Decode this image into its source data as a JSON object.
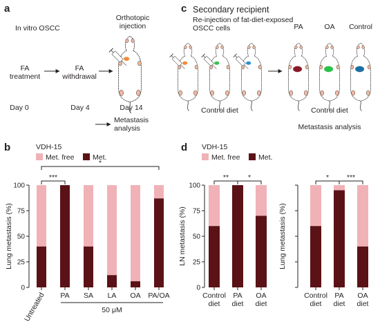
{
  "colors": {
    "met_free": "#f0b2b7",
    "met": "#5a1217",
    "pa": "#8a1a2a",
    "oa": "#2bc24a",
    "control": "#1a6fa3",
    "syringe_orange": "#f08a3a",
    "syringe_green": "#37c24c",
    "syringe_blue": "#2a8fd0",
    "skin": "#f2b9a0"
  },
  "panel_a": {
    "letter": "a",
    "title": "In vitro OSCC",
    "step1": [
      "FA",
      "treatment"
    ],
    "step2": [
      "FA",
      "withdrawal"
    ],
    "step3": [
      "Orthotopic",
      "injection"
    ],
    "day0": "Day 0",
    "day4": "Day 4",
    "day14": "Day 14",
    "outcome": [
      "Metastasis",
      "analysis"
    ]
  },
  "panel_c": {
    "letter": "c",
    "title": "Secondary recipient",
    "subtitle": [
      "Re-injection of fat-diet-exposed",
      "OSCC cells"
    ],
    "left_caption": "Control diet",
    "groups": [
      "PA",
      "OA",
      "Control"
    ],
    "right_caption": "Control diet",
    "outcome": "Metastasis analysis"
  },
  "chart_data": [
    {
      "panel": "b",
      "type": "bar",
      "stacked": true,
      "subtitle": "VDH-15",
      "ylabel": "Lung metastasis (%)",
      "ylim": [
        0,
        100
      ],
      "yticks": [
        0,
        25,
        50,
        75,
        100
      ],
      "categories": [
        "Untreated",
        "PA",
        "SA",
        "LA",
        "OA",
        "PA/OA"
      ],
      "series": [
        {
          "name": "Met.",
          "values": [
            40,
            100,
            40,
            12,
            6,
            87
          ]
        },
        {
          "name": "Met. free",
          "values": [
            60,
            0,
            60,
            88,
            94,
            13
          ]
        }
      ],
      "group_label": "50 μM",
      "significance": [
        {
          "from": "Untreated",
          "to": "PA",
          "label": "***"
        },
        {
          "from": "Untreated",
          "to": "PA/OA",
          "label": "*"
        }
      ],
      "legend": "top"
    },
    {
      "panel": "d",
      "type": "bar",
      "stacked": true,
      "subtitle": "VDH-15",
      "ylabel": "LN metastasis (%)",
      "ylim": [
        0,
        100
      ],
      "yticks": [
        0,
        25,
        50,
        75,
        100
      ],
      "categories": [
        [
          "Control",
          "diet"
        ],
        [
          "PA",
          "diet"
        ],
        [
          "OA",
          "diet"
        ]
      ],
      "series": [
        {
          "name": "Met.",
          "values": [
            60,
            100,
            70
          ]
        },
        {
          "name": "Met. free",
          "values": [
            40,
            0,
            30
          ]
        }
      ],
      "significance": [
        {
          "from": 0,
          "to": 1,
          "label": "**"
        },
        {
          "from": 1,
          "to": 2,
          "label": "*"
        }
      ],
      "legend": "top"
    },
    {
      "panel": "d",
      "type": "bar",
      "stacked": true,
      "ylabel": "Lung metastasis (%)",
      "ylim": [
        0,
        100
      ],
      "yticks": [
        0,
        25,
        50,
        75,
        100
      ],
      "categories": [
        [
          "Control",
          "diet"
        ],
        [
          "PA",
          "diet"
        ],
        [
          "OA",
          "diet"
        ]
      ],
      "series": [
        {
          "name": "Met.",
          "values": [
            60,
            95,
            40
          ]
        },
        {
          "name": "Met. free",
          "values": [
            40,
            5,
            60
          ]
        }
      ],
      "significance": [
        {
          "from": 0,
          "to": 1,
          "label": "*"
        },
        {
          "from": 1,
          "to": 2,
          "label": "***"
        }
      ]
    }
  ]
}
